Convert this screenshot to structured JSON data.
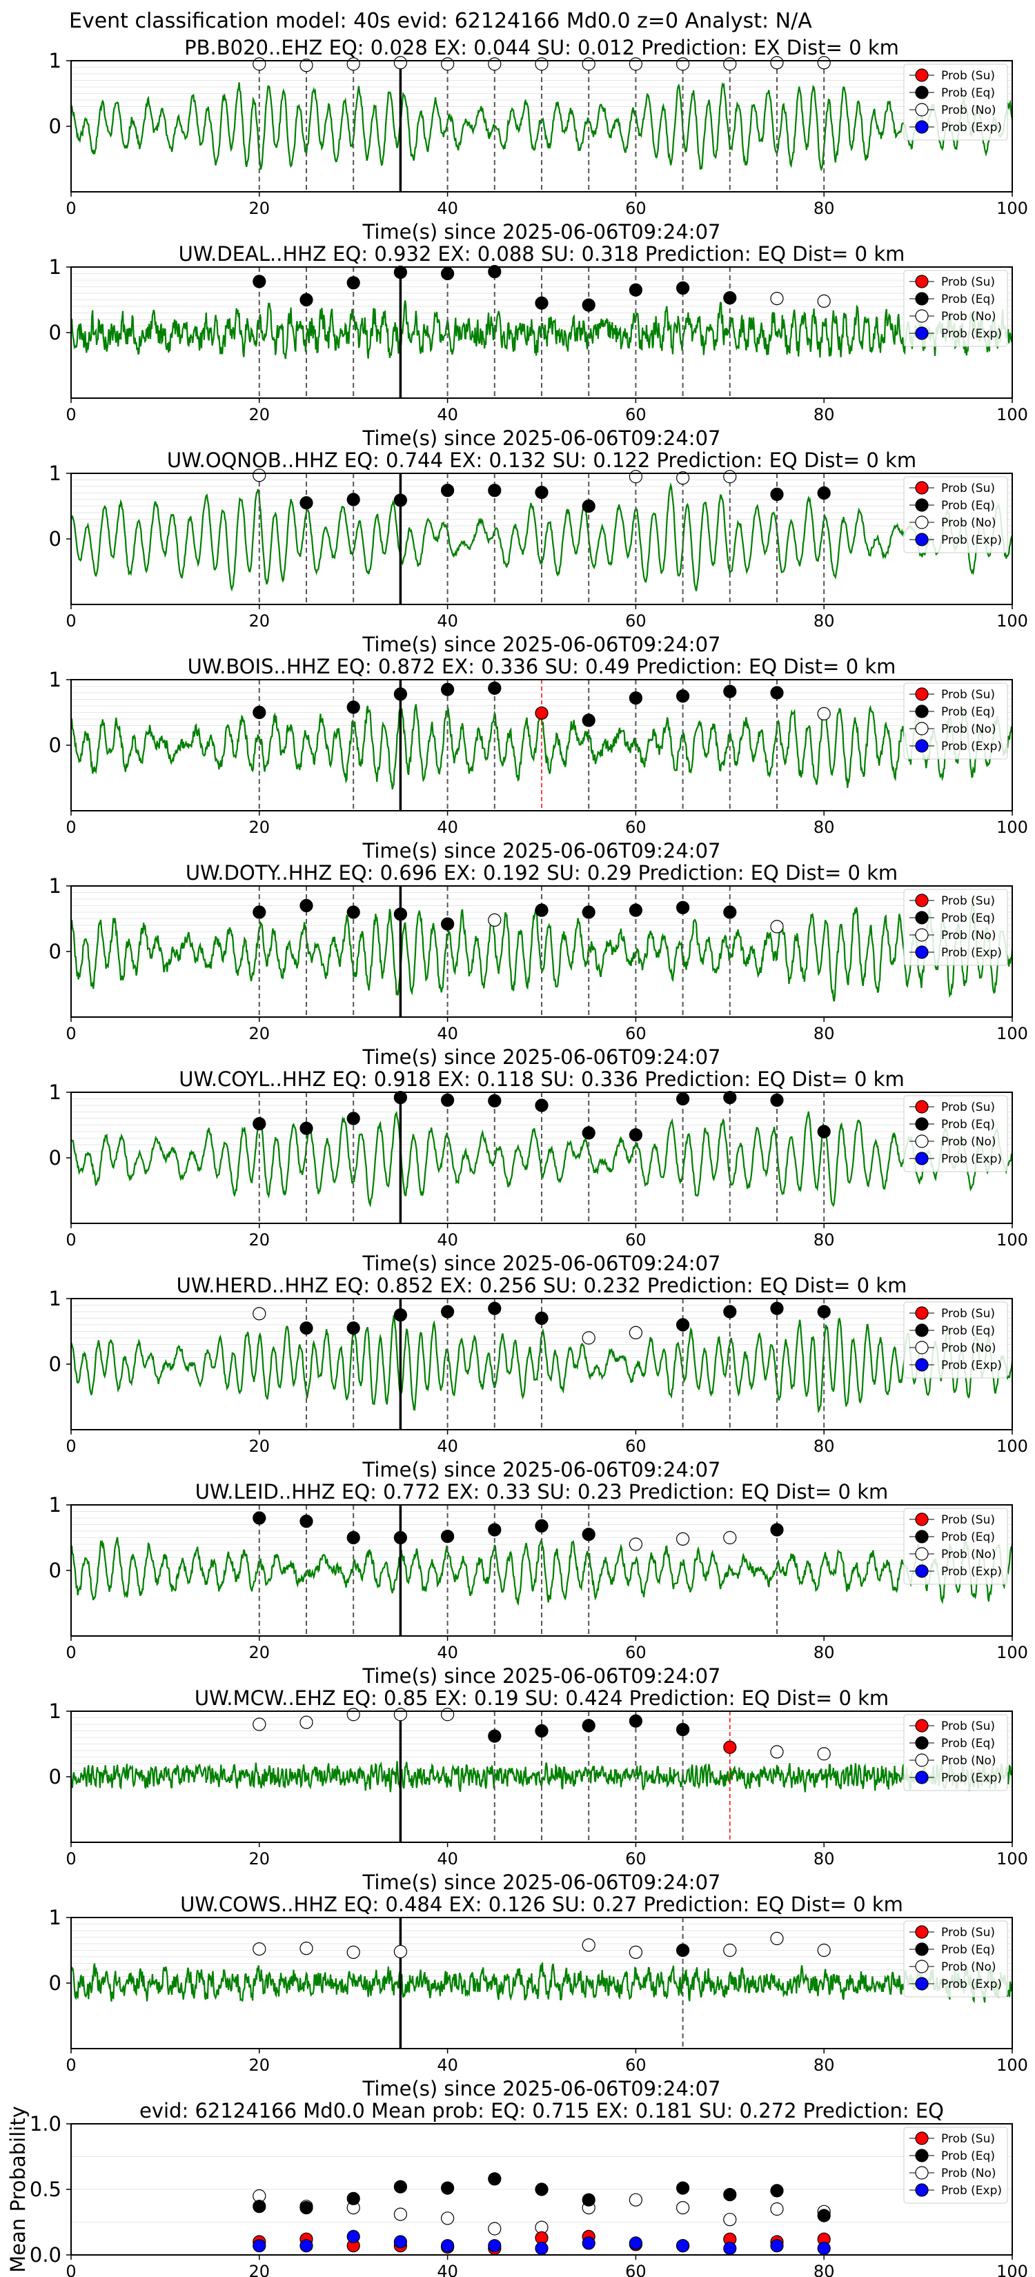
{
  "figure": {
    "suptitle": "Event classification model: 40s evid: 62124166 Md0.0 z=0 Analyst: N/A",
    "xlabel": "Time(s) since 2025-06-06T09:24:07",
    "legend": [
      "Prob (Su)",
      "Prob (Eq)",
      "Prob (No)",
      "Prob (Exp)"
    ],
    "colors": {
      "su": "#ff0000",
      "eq": "#000000",
      "no": "#ffffff",
      "exp": "#0000ff",
      "trace": "#008000",
      "pick_line": "#555555",
      "pred_line": "#ff0000"
    }
  },
  "chart_data": [
    {
      "type": "line",
      "title": "PB.B020..EHZ   EQ: 0.028  EX: 0.044  SU: 0.012   Prediction: EX    Dist= 0 km",
      "station": "PB.B020..EHZ",
      "xlim": [
        0,
        100
      ],
      "ylim": [
        -1,
        1
      ],
      "xticks": [
        0,
        20,
        40,
        60,
        80,
        100
      ],
      "yticks": [
        1,
        0
      ],
      "onset": 35,
      "dashed": [
        20,
        25,
        30,
        35,
        40,
        45,
        50,
        55,
        60,
        65,
        70,
        75,
        80
      ],
      "red_dashed": [],
      "eq_points": [],
      "no_points": [
        [
          20,
          0.95
        ],
        [
          25,
          0.93
        ],
        [
          30,
          0.95
        ],
        [
          35,
          0.97
        ],
        [
          40,
          0.95
        ],
        [
          45,
          0.95
        ],
        [
          50,
          0.95
        ],
        [
          55,
          0.95
        ],
        [
          60,
          0.95
        ],
        [
          65,
          0.95
        ],
        [
          70,
          0.95
        ],
        [
          75,
          0.97
        ],
        [
          80,
          0.97
        ]
      ],
      "su_points": [],
      "exp_points": [],
      "trace": {
        "freq": 0.62,
        "amp": 0.45,
        "noise": 0.08,
        "seed": 11
      }
    },
    {
      "type": "line",
      "title": "UW.DEAL..HHZ   EQ: 0.932  EX: 0.088  SU: 0.318   Prediction: EQ    Dist= 0 km",
      "station": "UW.DEAL..HHZ",
      "xlim": [
        0,
        100
      ],
      "ylim": [
        -1,
        1
      ],
      "xticks": [
        0,
        20,
        40,
        60,
        80,
        100
      ],
      "yticks": [
        1,
        0
      ],
      "onset": 35,
      "dashed": [
        20,
        25,
        30,
        35,
        40,
        45,
        50,
        55,
        60,
        65,
        70
      ],
      "red_dashed": [],
      "eq_points": [
        [
          20,
          0.78
        ],
        [
          25,
          0.5
        ],
        [
          30,
          0.76
        ],
        [
          35,
          0.92
        ],
        [
          40,
          0.9
        ],
        [
          45,
          0.93
        ],
        [
          50,
          0.45
        ],
        [
          55,
          0.42
        ],
        [
          60,
          0.65
        ],
        [
          65,
          0.68
        ],
        [
          70,
          0.53
        ]
      ],
      "no_points": [
        [
          75,
          0.52
        ],
        [
          80,
          0.48
        ]
      ],
      "su_points": [],
      "exp_points": [],
      "trace": {
        "freq": 0.9,
        "amp": 0.2,
        "noise": 0.25,
        "seed": 23
      }
    },
    {
      "type": "line",
      "title": "UW.OQNOB..HHZ   EQ: 0.744  EX: 0.132  SU: 0.122   Prediction: EQ    Dist= 0 km",
      "station": "UW.OQNOB..HHZ",
      "xlim": [
        0,
        100
      ],
      "ylim": [
        -1,
        1
      ],
      "xticks": [
        0,
        20,
        40,
        60,
        80,
        100
      ],
      "yticks": [
        1,
        0
      ],
      "onset": 35,
      "dashed": [
        20,
        25,
        30,
        35,
        40,
        45,
        50,
        55,
        60,
        65,
        70,
        75,
        80
      ],
      "red_dashed": [],
      "eq_points": [
        [
          25,
          0.55
        ],
        [
          30,
          0.6
        ],
        [
          35,
          0.59
        ],
        [
          40,
          0.74
        ],
        [
          45,
          0.74
        ],
        [
          50,
          0.71
        ],
        [
          55,
          0.5
        ],
        [
          75,
          0.68
        ],
        [
          80,
          0.7
        ]
      ],
      "no_points": [
        [
          20,
          0.97
        ],
        [
          60,
          0.95
        ],
        [
          65,
          0.93
        ],
        [
          70,
          0.95
        ]
      ],
      "su_points": [],
      "exp_points": [],
      "trace": {
        "freq": 0.55,
        "amp": 0.5,
        "noise": 0.05,
        "seed": 37
      }
    },
    {
      "type": "line",
      "title": "UW.BOIS..HHZ   EQ: 0.872  EX: 0.336  SU: 0.49   Prediction: EQ    Dist= 0 km",
      "station": "UW.BOIS..HHZ",
      "xlim": [
        0,
        100
      ],
      "ylim": [
        -1,
        1
      ],
      "xticks": [
        0,
        20,
        40,
        60,
        80,
        100
      ],
      "yticks": [
        1,
        0
      ],
      "onset": 35,
      "dashed": [
        20,
        30,
        35,
        40,
        45,
        55,
        60,
        65,
        70,
        75
      ],
      "red_dashed": [
        50
      ],
      "eq_points": [
        [
          20,
          0.5
        ],
        [
          30,
          0.58
        ],
        [
          35,
          0.78
        ],
        [
          40,
          0.85
        ],
        [
          45,
          0.87
        ],
        [
          55,
          0.38
        ],
        [
          60,
          0.72
        ],
        [
          65,
          0.75
        ],
        [
          70,
          0.82
        ],
        [
          75,
          0.8
        ]
      ],
      "no_points": [
        [
          80,
          0.48
        ]
      ],
      "su_points": [
        [
          50,
          0.49
        ]
      ],
      "exp_points": [],
      "trace": {
        "freq": 0.6,
        "amp": 0.4,
        "noise": 0.12,
        "seed": 41
      }
    },
    {
      "type": "line",
      "title": "UW.DOTY..HHZ   EQ: 0.696  EX: 0.192  SU: 0.29   Prediction: EQ    Dist= 0 km",
      "station": "UW.DOTY..HHZ",
      "xlim": [
        0,
        100
      ],
      "ylim": [
        -1,
        1
      ],
      "xticks": [
        0,
        20,
        40,
        60,
        80,
        100
      ],
      "yticks": [
        1,
        0
      ],
      "onset": 35,
      "dashed": [
        20,
        25,
        30,
        35,
        40,
        50,
        55,
        60,
        65,
        70
      ],
      "red_dashed": [],
      "eq_points": [
        [
          20,
          0.6
        ],
        [
          25,
          0.7
        ],
        [
          30,
          0.6
        ],
        [
          35,
          0.57
        ],
        [
          40,
          0.42
        ],
        [
          50,
          0.63
        ],
        [
          55,
          0.6
        ],
        [
          60,
          0.63
        ],
        [
          65,
          0.67
        ],
        [
          70,
          0.6
        ]
      ],
      "no_points": [
        [
          45,
          0.48
        ],
        [
          75,
          0.38
        ]
      ],
      "su_points": [],
      "exp_points": [],
      "trace": {
        "freq": 0.65,
        "amp": 0.45,
        "noise": 0.12,
        "seed": 53
      }
    },
    {
      "type": "line",
      "title": "UW.COYL..HHZ   EQ: 0.918  EX: 0.118  SU: 0.336   Prediction: EQ    Dist= 0 km",
      "station": "UW.COYL..HHZ",
      "xlim": [
        0,
        100
      ],
      "ylim": [
        -1,
        1
      ],
      "xticks": [
        0,
        20,
        40,
        60,
        80,
        100
      ],
      "yticks": [
        1,
        0
      ],
      "onset": 35,
      "dashed": [
        20,
        25,
        30,
        35,
        40,
        45,
        50,
        55,
        60,
        65,
        70,
        75,
        80
      ],
      "red_dashed": [],
      "eq_points": [
        [
          20,
          0.52
        ],
        [
          25,
          0.45
        ],
        [
          30,
          0.6
        ],
        [
          35,
          0.92
        ],
        [
          40,
          0.88
        ],
        [
          45,
          0.87
        ],
        [
          50,
          0.8
        ],
        [
          55,
          0.38
        ],
        [
          60,
          0.35
        ],
        [
          65,
          0.9
        ],
        [
          70,
          0.92
        ],
        [
          75,
          0.88
        ],
        [
          80,
          0.4
        ]
      ],
      "no_points": [],
      "su_points": [],
      "exp_points": [],
      "trace": {
        "freq": 0.55,
        "amp": 0.45,
        "noise": 0.06,
        "seed": 67
      }
    },
    {
      "type": "line",
      "title": "UW.HERD..HHZ   EQ: 0.852  EX: 0.256  SU: 0.232   Prediction: EQ    Dist= 0 km",
      "station": "UW.HERD..HHZ",
      "xlim": [
        0,
        100
      ],
      "ylim": [
        -1,
        1
      ],
      "xticks": [
        0,
        20,
        40,
        60,
        80,
        100
      ],
      "yticks": [
        1,
        0
      ],
      "onset": 35,
      "dashed": [
        25,
        30,
        35,
        40,
        45,
        50,
        65,
        70,
        75,
        80
      ],
      "red_dashed": [],
      "eq_points": [
        [
          25,
          0.55
        ],
        [
          30,
          0.55
        ],
        [
          35,
          0.75
        ],
        [
          40,
          0.8
        ],
        [
          45,
          0.85
        ],
        [
          50,
          0.7
        ],
        [
          65,
          0.6
        ],
        [
          70,
          0.8
        ],
        [
          75,
          0.85
        ],
        [
          80,
          0.8
        ]
      ],
      "no_points": [
        [
          20,
          0.77
        ],
        [
          55,
          0.4
        ],
        [
          60,
          0.48
        ]
      ],
      "su_points": [],
      "exp_points": [],
      "trace": {
        "freq": 0.7,
        "amp": 0.45,
        "noise": 0.06,
        "seed": 79
      }
    },
    {
      "type": "line",
      "title": "UW.LEID..HHZ   EQ: 0.772  EX: 0.33  SU: 0.23   Prediction: EQ    Dist= 0 km",
      "station": "UW.LEID..HHZ",
      "xlim": [
        0,
        100
      ],
      "ylim": [
        -1,
        1
      ],
      "xticks": [
        0,
        20,
        40,
        60,
        80,
        100
      ],
      "yticks": [
        1,
        0
      ],
      "onset": 35,
      "dashed": [
        20,
        25,
        30,
        35,
        40,
        45,
        50,
        55,
        75
      ],
      "red_dashed": [],
      "eq_points": [
        [
          20,
          0.8
        ],
        [
          25,
          0.75
        ],
        [
          30,
          0.5
        ],
        [
          35,
          0.5
        ],
        [
          40,
          0.52
        ],
        [
          45,
          0.62
        ],
        [
          50,
          0.68
        ],
        [
          55,
          0.55
        ],
        [
          75,
          0.62
        ]
      ],
      "no_points": [
        [
          60,
          0.4
        ],
        [
          65,
          0.48
        ],
        [
          70,
          0.5
        ]
      ],
      "su_points": [],
      "exp_points": [],
      "trace": {
        "freq": 0.6,
        "amp": 0.3,
        "noise": 0.1,
        "seed": 83
      }
    },
    {
      "type": "line",
      "title": "UW.MCW..EHZ   EQ: 0.85  EX: 0.19  SU: 0.424   Prediction: EQ    Dist= 0 km",
      "station": "UW.MCW..EHZ",
      "xlim": [
        0,
        100
      ],
      "ylim": [
        -1,
        1
      ],
      "xticks": [
        0,
        20,
        40,
        60,
        80,
        100
      ],
      "yticks": [
        1,
        0
      ],
      "onset": 35,
      "dashed": [
        45,
        50,
        55,
        60,
        65
      ],
      "red_dashed": [
        70
      ],
      "eq_points": [
        [
          45,
          0.62
        ],
        [
          50,
          0.7
        ],
        [
          55,
          0.78
        ],
        [
          60,
          0.85
        ],
        [
          65,
          0.72
        ]
      ],
      "no_points": [
        [
          20,
          0.8
        ],
        [
          25,
          0.83
        ],
        [
          30,
          0.95
        ],
        [
          35,
          0.95
        ],
        [
          40,
          0.95
        ],
        [
          75,
          0.38
        ],
        [
          80,
          0.35
        ]
      ],
      "su_points": [
        [
          70,
          0.45
        ]
      ],
      "exp_points": [],
      "trace": {
        "freq": 2.2,
        "amp": 0.08,
        "noise": 0.18,
        "seed": 97
      }
    },
    {
      "type": "line",
      "title": "UW.COWS..HHZ   EQ: 0.484  EX: 0.126  SU: 0.27   Prediction: EQ    Dist= 0 km",
      "station": "UW.COWS..HHZ",
      "xlim": [
        0,
        100
      ],
      "ylim": [
        -1,
        1
      ],
      "xticks": [
        0,
        20,
        40,
        60,
        80,
        100
      ],
      "yticks": [
        1,
        0
      ],
      "onset": 35,
      "dashed": [
        65
      ],
      "red_dashed": [],
      "eq_points": [
        [
          65,
          0.5
        ]
      ],
      "no_points": [
        [
          20,
          0.52
        ],
        [
          25,
          0.53
        ],
        [
          30,
          0.47
        ],
        [
          35,
          0.48
        ],
        [
          55,
          0.58
        ],
        [
          60,
          0.47
        ],
        [
          70,
          0.5
        ],
        [
          75,
          0.68
        ],
        [
          80,
          0.5
        ]
      ],
      "su_points": [],
      "exp_points": [],
      "trace": {
        "freq": 0.8,
        "amp": 0.12,
        "noise": 0.2,
        "seed": 101
      }
    },
    {
      "type": "scatter",
      "title": "evid: 62124166  Md0.0   Mean prob:   EQ: 0.715  EX: 0.181  SU: 0.272   Prediction: EQ",
      "ylabel": "Mean Probability",
      "xlim": [
        0,
        100
      ],
      "ylim": [
        0,
        1
      ],
      "xticks": [
        0,
        20,
        40,
        60,
        80,
        100
      ],
      "yticks": [
        1.0,
        0.5,
        0.0
      ],
      "x": [
        20,
        25,
        30,
        35,
        40,
        45,
        50,
        55,
        60,
        65,
        70,
        75,
        80
      ],
      "series": [
        {
          "name": "Prob (Su)",
          "values": [
            0.1,
            0.12,
            0.07,
            0.07,
            0.06,
            0.05,
            0.13,
            0.14,
            0.08,
            0.07,
            0.12,
            0.1,
            0.12
          ]
        },
        {
          "name": "Prob (Eq)",
          "values": [
            0.37,
            0.36,
            0.43,
            0.52,
            0.51,
            0.58,
            0.5,
            0.42,
            null,
            0.51,
            0.46,
            0.49,
            0.3
          ]
        },
        {
          "name": "Prob (No)",
          "values": [
            0.45,
            0.37,
            0.36,
            0.31,
            0.28,
            0.2,
            0.21,
            0.36,
            0.42,
            0.36,
            0.27,
            0.35,
            0.33
          ]
        },
        {
          "name": "Prob (Exp)",
          "values": [
            0.07,
            0.07,
            0.14,
            0.1,
            0.07,
            0.07,
            0.05,
            0.09,
            0.09,
            0.07,
            0.05,
            0.07,
            0.05
          ]
        }
      ]
    }
  ]
}
